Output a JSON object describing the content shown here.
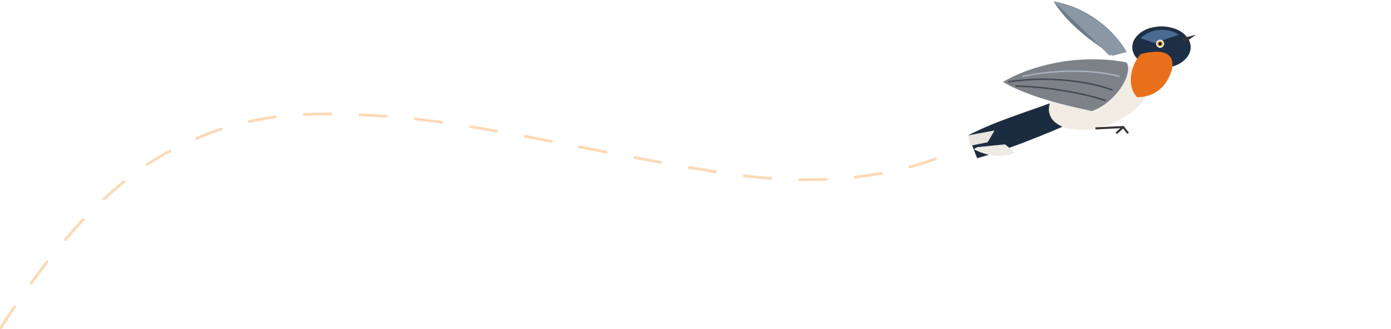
{
  "colors": {
    "background": "#ffffff",
    "flight_path": "#fcd9b5",
    "bird_throat": "#e8701a",
    "bird_back": "#1f3550",
    "bird_wing": "#7d8288",
    "bird_belly": "#f1ede4"
  },
  "illustration": {
    "subject": "bird-flying",
    "path_style": "dashed"
  }
}
